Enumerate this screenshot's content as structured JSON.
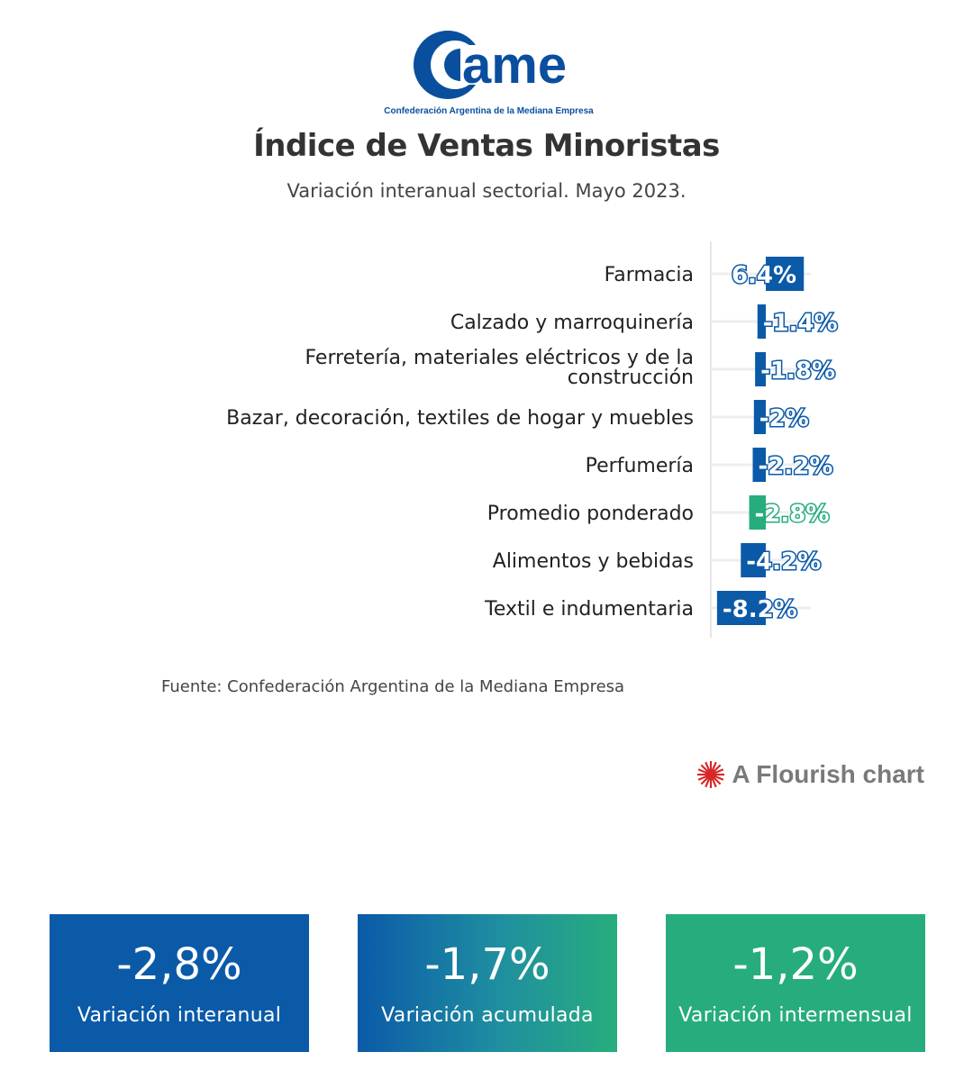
{
  "header": {
    "logo_text": "ame",
    "logo_tagline": "Confederación Argentina de la Mediana Empresa",
    "title": "Índice de Ventas Minoristas",
    "subtitle": "Variación interanual sectorial. Mayo 2023."
  },
  "chart_data": {
    "type": "bar",
    "orientation": "horizontal",
    "categories": [
      "Farmacia",
      "Calzado y marroquinería",
      "Ferretería, materiales eléctricos y de la construcción",
      "Bazar, decoración, textiles de hogar y muebles",
      "Perfumería",
      "Promedio ponderado",
      "Alimentos y bebidas",
      "Textil e indumentaria"
    ],
    "values": [
      6.4,
      -1.4,
      -1.8,
      -2,
      -2.2,
      -2.8,
      -4.2,
      -8.2
    ],
    "value_labels": [
      "6.4%",
      "-1.4%",
      "-1.8%",
      "-2%",
      "-2.2%",
      "-2.8%",
      "-4.2%",
      "-8.2%"
    ],
    "colors": [
      "#0b5aa8",
      "#0b5aa8",
      "#0b5aa8",
      "#0b5aa8",
      "#0b5aa8",
      "#27ad7d",
      "#0b5aa8",
      "#0b5aa8"
    ],
    "grid": true
  },
  "footnote": "Fuente: Confederación Argentina de la Mediana Empresa",
  "credit": "A Flourish chart",
  "cards": [
    {
      "value": "-2,8%",
      "label": "Variación interanual"
    },
    {
      "value": "-1,7%",
      "label": "Variación acumulada"
    },
    {
      "value": "-1,2%",
      "label": "Variación intermensual"
    }
  ],
  "colors": {
    "brand_blue": "#0b5aa8",
    "brand_green": "#27ad7d",
    "flourish_red": "#d62828"
  }
}
